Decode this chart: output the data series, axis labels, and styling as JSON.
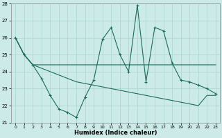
{
  "xlabel": "Humidex (Indice chaleur)",
  "x": [
    0,
    1,
    2,
    3,
    4,
    5,
    6,
    7,
    8,
    9,
    10,
    11,
    12,
    13,
    14,
    15,
    16,
    17,
    18,
    19,
    20,
    21,
    22,
    23
  ],
  "line1": [
    26.0,
    25.0,
    24.4,
    23.6,
    22.6,
    21.8,
    21.6,
    21.3,
    22.5,
    23.5,
    25.9,
    26.6,
    25.0,
    24.0,
    27.9,
    23.4,
    26.6,
    26.4,
    24.5,
    23.5,
    23.4,
    23.2,
    23.0,
    22.7
  ],
  "line2": [
    26.0,
    25.0,
    24.4,
    24.4,
    24.4,
    24.4,
    24.4,
    24.4,
    24.4,
    24.4,
    24.4,
    24.4,
    24.4,
    24.4,
    24.4,
    24.4,
    24.4,
    24.4,
    24.4,
    24.4,
    24.4,
    24.4,
    24.4,
    24.4
  ],
  "line3": [
    26.0,
    25.0,
    24.4,
    24.2,
    24.0,
    23.8,
    23.6,
    23.4,
    23.3,
    23.2,
    23.1,
    23.0,
    22.9,
    22.8,
    22.7,
    22.6,
    22.5,
    22.4,
    22.3,
    22.2,
    22.1,
    22.0,
    22.6,
    22.6
  ],
  "ylim_min": 21,
  "ylim_max": 28,
  "xlim_min": -0.5,
  "xlim_max": 23.5,
  "yticks": [
    21,
    22,
    23,
    24,
    25,
    26,
    27,
    28
  ],
  "xticks": [
    0,
    1,
    2,
    3,
    4,
    5,
    6,
    7,
    8,
    9,
    10,
    11,
    12,
    13,
    14,
    15,
    16,
    17,
    18,
    19,
    20,
    21,
    22,
    23
  ],
  "line_color": "#1a6b5a",
  "bg_color": "#cceae8",
  "grid_color": "#aad4d0"
}
